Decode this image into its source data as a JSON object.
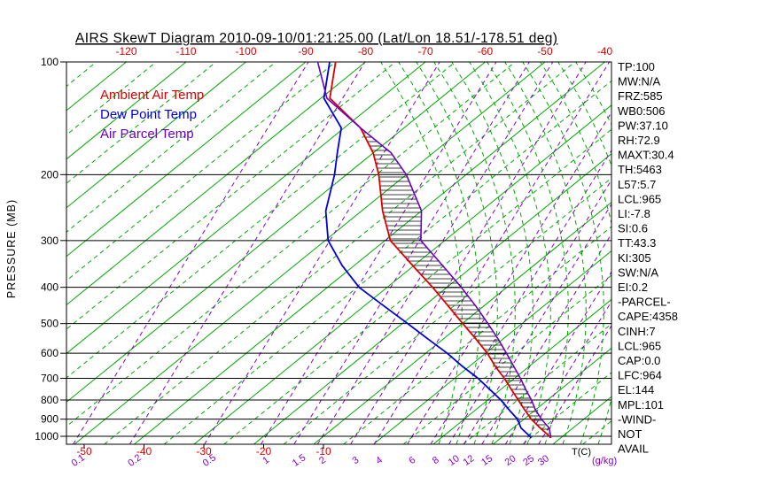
{
  "title": "AIRS SkewT Diagram 2010-09-10/01:21:25.00 (Lat/Lon 18.51/-178.51 deg)",
  "legend": [
    {
      "label": "Ambient Air Temp",
      "color": "#dd0000"
    },
    {
      "label": "Dew Point Temp",
      "color": "#0000dd"
    },
    {
      "label": "Air Parcel Temp",
      "color": "#6a00c8"
    }
  ],
  "axes": {
    "pressure_label": "PRESSURE (MB)",
    "pressure_ticks": [
      100,
      200,
      300,
      400,
      500,
      600,
      700,
      800,
      900,
      1000
    ],
    "top_temp_ticks_c": [
      -120,
      -110,
      -100,
      -90,
      -80,
      -70,
      -60,
      -50,
      -40
    ],
    "bottom_temp_ticks_c": [
      -50,
      -40,
      -30,
      -20,
      -10
    ],
    "mixing_ratio_ticks": [
      0.1,
      0.2,
      0.5,
      1,
      1.5,
      2,
      3,
      4,
      6,
      8,
      10,
      12,
      15,
      20,
      25,
      30
    ],
    "temp_unit_label": "T(C)",
    "mixing_ratio_unit_label": "(g/kg)"
  },
  "stats": [
    "TP:100",
    "MW:N/A",
    "FRZ:585",
    "WB0:506",
    "PW:37.10",
    "RH:72.9",
    "MAXT:30.4",
    "TH:5463",
    "L57:5.7",
    "LCL:965",
    "LI:-7.8",
    "SI:0.6",
    "TT:43.3",
    "KI:305",
    "SW:N/A",
    "EI:0.2",
    "-PARCEL-",
    "CAPE:4358",
    "CINH:7",
    "LCL:965",
    "CAP:0.0",
    "LFC:964",
    "EL:144",
    "MPL:101",
    "-WIND-",
    "NOT",
    "AVAIL"
  ],
  "colors": {
    "isotherm_green": "#00a800",
    "mixing_ratio_purple": "#8800cc",
    "ambient_red": "#dd0000",
    "dewpoint_blue": "#0000dd",
    "parcel_purple": "#6a00c8",
    "axis_black": "#000000"
  },
  "chart_data": {
    "type": "line",
    "projection": "skew-t-log-p",
    "y_scale": "log pressure, 100-1050 mb",
    "x_scale": "temperature C skewed 45deg; top axis -120..-40, bottom axis -50..-10",
    "pressure_mb": [
      1010,
      1000,
      950,
      900,
      850,
      800,
      750,
      700,
      650,
      600,
      550,
      500,
      450,
      400,
      350,
      300,
      250,
      200,
      175,
      150,
      125,
      100
    ],
    "series": [
      {
        "name": "Ambient Air Temp",
        "unit": "C",
        "values": [
          28.3,
          27.8,
          24.5,
          21.2,
          18.2,
          15.1,
          11.8,
          8.3,
          4.3,
          0.3,
          -4.5,
          -9.9,
          -15.8,
          -22.4,
          -30.2,
          -39.1,
          -46.5,
          -54.6,
          -60.0,
          -67.3,
          -78.5,
          -85.0
        ]
      },
      {
        "name": "Dew Point Temp",
        "unit": "C",
        "values": [
          25.0,
          24.5,
          21.3,
          18.9,
          15.6,
          12.2,
          8.2,
          3.9,
          -1.2,
          -6.4,
          -12.5,
          -19.1,
          -26.5,
          -34.7,
          -42.0,
          -49.5,
          -56.0,
          -62.0,
          -66.0,
          -70.5,
          -79.5,
          -86.0
        ]
      },
      {
        "name": "Air Parcel Temp",
        "unit": "C",
        "values": [
          28.3,
          28.0,
          26.0,
          22.9,
          20.0,
          17.3,
          14.2,
          11.0,
          7.4,
          3.5,
          -0.8,
          -5.7,
          -11.2,
          -17.6,
          -25.2,
          -34.0,
          -40.0,
          -50.0,
          -57.0,
          -67.3,
          -79.0,
          -88.0
        ]
      }
    ],
    "isotherms_c": {
      "min": -160,
      "max": 40,
      "solid_step": 10,
      "dashed_step": 5
    },
    "cape_hatch": {
      "between": [
        "Air Parcel Temp",
        "Ambient Air Temp"
      ],
      "pressure_range_mb": [
        965,
        150
      ]
    }
  }
}
